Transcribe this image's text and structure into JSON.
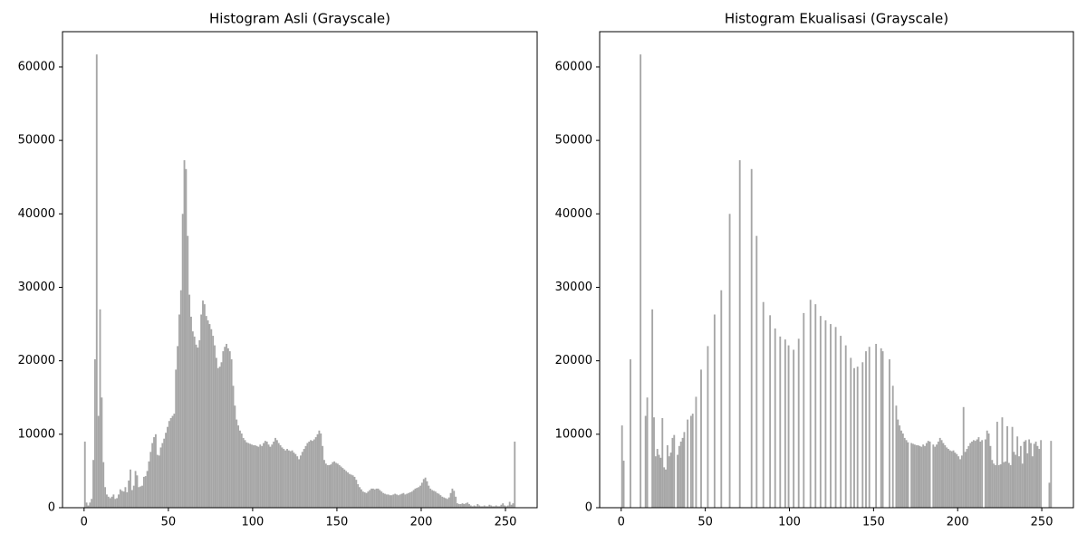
{
  "chart_data": [
    {
      "type": "histogram",
      "title": "Histogram Asli (Grayscale)",
      "color": "#a6a6a6",
      "bins": [
        0,
        1,
        2,
        3,
        4,
        5,
        6,
        7,
        8,
        9,
        10,
        11,
        12,
        13,
        14,
        15,
        16,
        17,
        18,
        19,
        20,
        21,
        22,
        23,
        24,
        25,
        26,
        27,
        28,
        29,
        30,
        31,
        32,
        33,
        34,
        35,
        36,
        37,
        38,
        39,
        40,
        41,
        42,
        43,
        44,
        45,
        46,
        47,
        48,
        49,
        50,
        51,
        52,
        53,
        54,
        55,
        56,
        57,
        58,
        59,
        60,
        61,
        62,
        63,
        64,
        65,
        66,
        67,
        68,
        69,
        70,
        71,
        72,
        73,
        74,
        75,
        76,
        77,
        78,
        79,
        80,
        81,
        82,
        83,
        84,
        85,
        86,
        87,
        88,
        89,
        90,
        91,
        92,
        93,
        94,
        95,
        96,
        97,
        98,
        99,
        100,
        101,
        102,
        103,
        104,
        105,
        106,
        107,
        108,
        109,
        110,
        111,
        112,
        113,
        114,
        115,
        116,
        117,
        118,
        119,
        120,
        121,
        122,
        123,
        124,
        125,
        126,
        127,
        128,
        129,
        130,
        131,
        132,
        133,
        134,
        135,
        136,
        137,
        138,
        139,
        140,
        141,
        142,
        143,
        144,
        145,
        146,
        147,
        148,
        149,
        150,
        151,
        152,
        153,
        154,
        155,
        156,
        157,
        158,
        159,
        160,
        161,
        162,
        163,
        164,
        165,
        166,
        167,
        168,
        169,
        170,
        171,
        172,
        173,
        174,
        175,
        176,
        177,
        178,
        179,
        180,
        181,
        182,
        183,
        184,
        185,
        186,
        187,
        188,
        189,
        190,
        191,
        192,
        193,
        194,
        195,
        196,
        197,
        198,
        199,
        200,
        201,
        202,
        203,
        204,
        205,
        206,
        207,
        208,
        209,
        210,
        211,
        212,
        213,
        214,
        215,
        216,
        217,
        218,
        219,
        220,
        221,
        222,
        223,
        224,
        225,
        226,
        227,
        228,
        229,
        230,
        231,
        232,
        233,
        234,
        235,
        236,
        237,
        238,
        239,
        240,
        241,
        242,
        243,
        244,
        245,
        246,
        247,
        248,
        249,
        250,
        251,
        252,
        253,
        254,
        255,
        256
      ],
      "values": [
        9000,
        700,
        300,
        700,
        1200,
        6500,
        20200,
        61700,
        12500,
        27000,
        15000,
        6200,
        2800,
        1800,
        1500,
        1300,
        1500,
        1800,
        1200,
        1300,
        1800,
        2500,
        2300,
        2200,
        2800,
        2100,
        3700,
        5200,
        2400,
        3000,
        5000,
        4400,
        2800,
        2900,
        3000,
        4200,
        4300,
        5000,
        6300,
        7600,
        8800,
        9600,
        10000,
        7200,
        7100,
        8200,
        8800,
        9400,
        10200,
        11000,
        11800,
        12200,
        12500,
        12800,
        18800,
        22000,
        26300,
        29600,
        40000,
        47300,
        46100,
        37000,
        29000,
        26000,
        24000,
        23300,
        22200,
        21800,
        22800,
        26300,
        28200,
        27700,
        26100,
        25500,
        25000,
        24300,
        23400,
        22100,
        20400,
        19000,
        19200,
        19800,
        21300,
        21900,
        22300,
        21700,
        21300,
        20200,
        16600,
        13900,
        12000,
        11200,
        10500,
        10100,
        9500,
        9200,
        8900,
        8800,
        8700,
        8600,
        8500,
        8500,
        8400,
        8300,
        8600,
        8400,
        8800,
        9100,
        9000,
        8600,
        8300,
        8600,
        9000,
        9500,
        9200,
        8800,
        8500,
        8200,
        8000,
        7800,
        8000,
        7800,
        7700,
        7800,
        7500,
        7300,
        7000,
        6600,
        7100,
        7600,
        8000,
        8400,
        8800,
        9000,
        9200,
        9100,
        9300,
        9600,
        10000,
        10500,
        10100,
        8400,
        6500,
        6000,
        5800,
        5800,
        5900,
        6200,
        6300,
        6100,
        6000,
        5800,
        5600,
        5400,
        5200,
        5000,
        4800,
        4600,
        4500,
        4400,
        4200,
        3800,
        3200,
        2800,
        2500,
        2200,
        2100,
        2000,
        2200,
        2400,
        2600,
        2600,
        2500,
        2600,
        2600,
        2400,
        2200,
        2000,
        1900,
        1800,
        1800,
        1700,
        1700,
        1800,
        1900,
        1800,
        1700,
        1800,
        1900,
        2000,
        1800,
        1900,
        2000,
        2100,
        2200,
        2400,
        2600,
        2700,
        2800,
        3000,
        3400,
        3900,
        4100,
        3600,
        3000,
        2600,
        2400,
        2300,
        2200,
        2000,
        1900,
        1700,
        1500,
        1400,
        1300,
        1200,
        1400,
        2000,
        2600,
        2300,
        1500,
        600,
        500,
        500,
        600,
        500,
        600,
        700,
        500,
        300,
        200,
        300,
        200,
        500,
        300,
        200,
        200,
        300,
        200,
        200,
        400,
        300,
        200,
        200,
        300,
        200,
        200,
        400,
        600,
        300,
        200,
        300,
        800,
        400,
        600,
        9000
      ],
      "xlim": [
        -12.8,
        268.8
      ],
      "ylim": [
        0,
        64800
      ],
      "xticks": [
        0,
        50,
        100,
        150,
        200,
        250
      ],
      "yticks": [
        0,
        10000,
        20000,
        30000,
        40000,
        50000,
        60000
      ]
    },
    {
      "type": "histogram",
      "title": "Histogram Ekualisasi (Grayscale)",
      "color": "#a6a6a6",
      "bins": [
        0,
        1,
        2,
        3,
        4,
        5,
        6,
        7,
        8,
        9,
        10,
        11,
        12,
        13,
        14,
        15,
        16,
        17,
        18,
        19,
        20,
        21,
        22,
        23,
        24,
        25,
        26,
        27,
        28,
        29,
        30,
        31,
        32,
        33,
        34,
        35,
        36,
        37,
        38,
        39,
        40,
        41,
        42,
        43,
        44,
        45,
        46,
        47,
        48,
        49,
        50,
        51,
        52,
        53,
        54,
        55,
        56,
        57,
        58,
        59,
        60,
        61,
        62,
        63,
        64,
        65,
        66,
        67,
        68,
        69,
        70,
        71,
        72,
        73,
        74,
        75,
        76,
        77,
        78,
        79,
        80,
        81,
        82,
        83,
        84,
        85,
        86,
        87,
        88,
        89,
        90,
        91,
        92,
        93,
        94,
        95,
        96,
        97,
        98,
        99,
        100,
        101,
        102,
        103,
        104,
        105,
        106,
        107,
        108,
        109,
        110,
        111,
        112,
        113,
        114,
        115,
        116,
        117,
        118,
        119,
        120,
        121,
        122,
        123,
        124,
        125,
        126,
        127,
        128,
        129,
        130,
        131,
        132,
        133,
        134,
        135,
        136,
        137,
        138,
        139,
        140,
        141,
        142,
        143,
        144,
        145,
        146,
        147,
        148,
        149,
        150,
        151,
        152,
        153,
        154,
        155,
        156,
        157,
        158,
        159,
        160,
        161,
        162,
        163,
        164,
        165,
        166,
        167,
        168,
        169,
        170,
        171,
        172,
        173,
        174,
        175,
        176,
        177,
        178,
        179,
        180,
        181,
        182,
        183,
        184,
        185,
        186,
        187,
        188,
        189,
        190,
        191,
        192,
        193,
        194,
        195,
        196,
        197,
        198,
        199,
        200,
        201,
        202,
        203,
        204,
        205,
        206,
        207,
        208,
        209,
        210,
        211,
        212,
        213,
        214,
        215,
        216,
        217,
        218,
        219,
        220,
        221,
        222,
        223,
        224,
        225,
        226,
        227,
        228,
        229,
        230,
        231,
        232,
        233,
        234,
        235,
        236,
        237,
        238,
        239,
        240,
        241,
        242,
        243,
        244,
        245,
        246,
        247,
        248,
        249,
        250,
        251,
        252,
        253,
        254,
        255,
        256
      ],
      "values": [
        11200,
        6400,
        0,
        0,
        0,
        20200,
        0,
        0,
        0,
        0,
        0,
        61700,
        0,
        0,
        12500,
        15000,
        0,
        0,
        27000,
        12300,
        7000,
        8000,
        7200,
        6800,
        12200,
        5500,
        5200,
        8500,
        7000,
        7500,
        9500,
        9900,
        0,
        7200,
        8400,
        9000,
        9500,
        10300,
        0,
        12000,
        0,
        12500,
        12800,
        0,
        15100,
        0,
        0,
        18800,
        0,
        0,
        0,
        22000,
        0,
        0,
        0,
        26300,
        0,
        0,
        0,
        29600,
        0,
        0,
        0,
        0,
        40000,
        0,
        0,
        0,
        0,
        0,
        47300,
        0,
        0,
        0,
        0,
        0,
        0,
        46100,
        0,
        0,
        37000,
        0,
        0,
        0,
        28000,
        0,
        0,
        0,
        26200,
        0,
        0,
        24400,
        0,
        0,
        23300,
        0,
        0,
        22900,
        0,
        22100,
        0,
        0,
        21500,
        0,
        0,
        23000,
        0,
        0,
        26500,
        0,
        0,
        0,
        28300,
        0,
        0,
        27700,
        0,
        0,
        26100,
        0,
        0,
        25500,
        0,
        0,
        25000,
        0,
        0,
        24600,
        0,
        0,
        23400,
        0,
        0,
        22100,
        0,
        0,
        20400,
        0,
        19000,
        0,
        19200,
        0,
        0,
        19800,
        0,
        21300,
        0,
        21900,
        0,
        0,
        0,
        22300,
        0,
        0,
        21700,
        21300,
        0,
        0,
        0,
        20200,
        0,
        16600,
        0,
        13900,
        12000,
        11200,
        10500,
        10100,
        9500,
        9200,
        8900,
        0,
        8800,
        8700,
        8600,
        8500,
        8500,
        8400,
        8300,
        8600,
        8400,
        8800,
        9100,
        9000,
        0,
        8600,
        8300,
        8600,
        9000,
        9500,
        9200,
        8800,
        8500,
        8200,
        8000,
        7800,
        7700,
        7800,
        7500,
        7300,
        7000,
        6600,
        7100,
        13700,
        7600,
        8000,
        8400,
        8800,
        9000,
        9200,
        9100,
        9300,
        9600,
        9000,
        9200,
        0,
        9300,
        10500,
        10100,
        8400,
        6500,
        6000,
        5800,
        11700,
        5800,
        5900,
        12300,
        6200,
        6300,
        11100,
        6100,
        5800,
        11000,
        7600,
        7200,
        9700,
        7000,
        8400,
        6000,
        9000,
        9200,
        7400,
        9300,
        8800,
        7000,
        8700,
        9000,
        8400,
        8000,
        9200,
        0,
        0,
        0,
        0,
        3400,
        9100
      ],
      "xlim": [
        -12.8,
        268.8
      ],
      "ylim": [
        0,
        64800
      ],
      "xticks": [
        0,
        50,
        100,
        150,
        200,
        250
      ],
      "yticks": [
        0,
        10000,
        20000,
        30000,
        40000,
        50000,
        60000
      ]
    }
  ]
}
